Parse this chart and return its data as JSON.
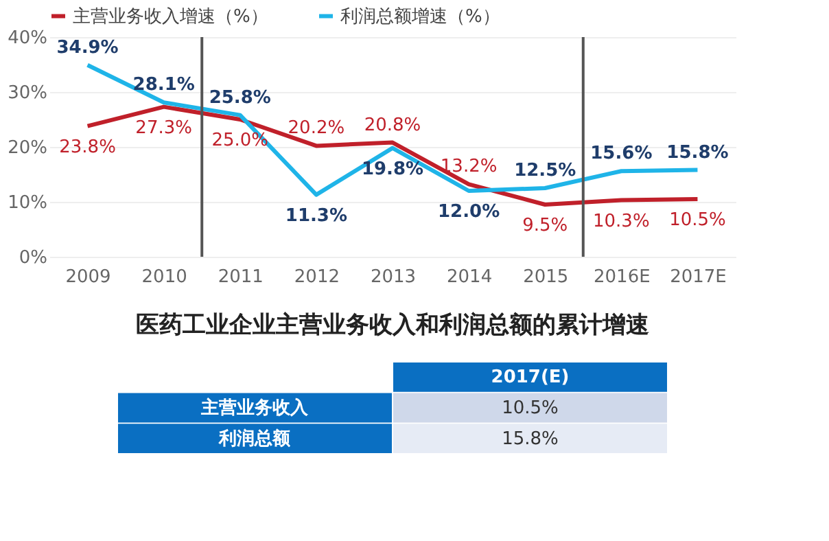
{
  "chart_data": [
    {
      "type": "line",
      "categories": [
        "2009",
        "2010",
        "2011",
        "2012",
        "2013",
        "2014",
        "2015",
        "2016E",
        "2017E"
      ],
      "series": [
        {
          "name": "主营业务收入增速（%）",
          "color": "#c0202a",
          "values": [
            23.8,
            27.3,
            25.0,
            20.2,
            20.8,
            13.2,
            9.5,
            10.3,
            10.5
          ],
          "value_labels": [
            "23.8%",
            "27.3%",
            "25.0%",
            "20.2%",
            "20.8%",
            "13.2%",
            "9.5%",
            "10.3%",
            "10.5%"
          ]
        },
        {
          "name": "利润总额增速（%）",
          "color": "#1fb4e8",
          "values": [
            34.9,
            28.1,
            25.8,
            11.3,
            19.8,
            12.0,
            12.5,
            15.6,
            15.8
          ],
          "value_labels": [
            "34.9%",
            "28.1%",
            "25.8%",
            "11.3%",
            "19.8%",
            "12.0%",
            "12.5%",
            "15.6%",
            "15.8%"
          ]
        }
      ],
      "ylim": [
        0,
        40
      ],
      "yticks": [
        {
          "value": 0,
          "label": "0%"
        },
        {
          "value": 10,
          "label": "10%"
        },
        {
          "value": 20,
          "label": "20%"
        },
        {
          "value": 30,
          "label": "30%"
        },
        {
          "value": 40,
          "label": "40%"
        }
      ],
      "grid": "y",
      "legend": "top",
      "marker": "none",
      "line_style": "solid"
    },
    {
      "type": "other",
      "title": "医药工业企业主营业务收入和利润总额的累计增速",
      "categories": [
        "2017(E)"
      ],
      "y_categories": [
        "主营业务收入",
        "利润总额"
      ],
      "cell_labels": [
        [
          "10.5%"
        ],
        [
          "15.8%"
        ]
      ]
    }
  ]
}
